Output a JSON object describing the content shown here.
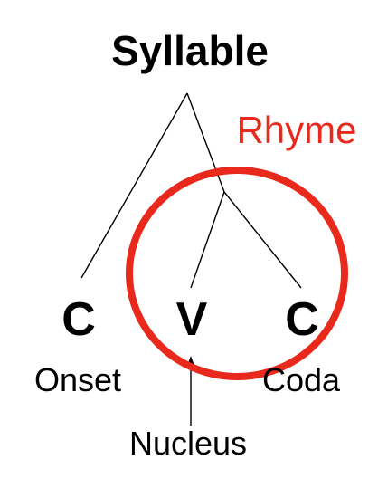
{
  "diagram": {
    "title": "Syllable",
    "rhyme_label": "Rhyme",
    "nodes": {
      "onset_letter": "C",
      "nucleus_letter": "V",
      "coda_letter": "C"
    },
    "labels": {
      "onset": "Onset",
      "nucleus": "Nucleus",
      "coda": "Coda"
    }
  },
  "colors": {
    "rhyme_accent": "#e8291c",
    "ink": "#000000",
    "background": "#ffffff"
  }
}
